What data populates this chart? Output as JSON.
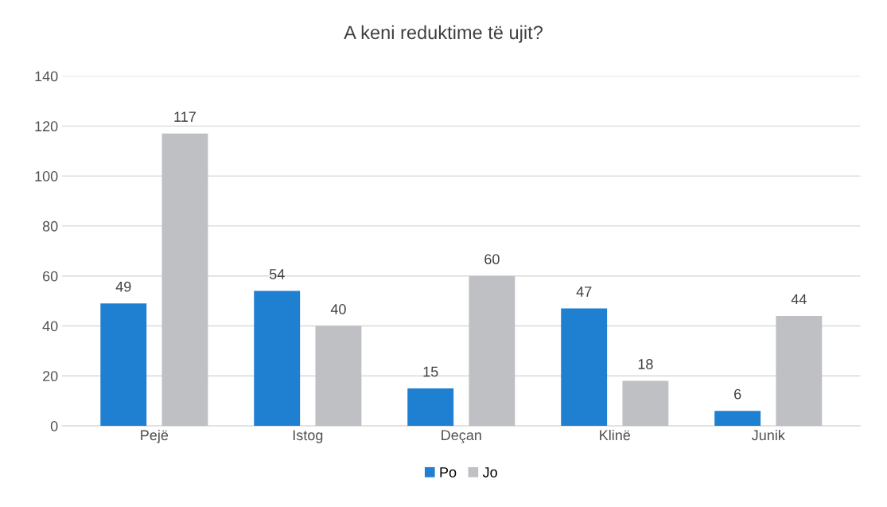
{
  "chart_data": {
    "type": "bar",
    "title": "A keni reduktime të ujit?",
    "categories": [
      "Pejë",
      "Istog",
      "Deçan",
      "Klinë",
      "Junik"
    ],
    "series": [
      {
        "name": "Po",
        "color": "#1f7fd0",
        "values": [
          49,
          54,
          15,
          47,
          6
        ]
      },
      {
        "name": "Jo",
        "color": "#bfc0c4",
        "values": [
          117,
          40,
          60,
          18,
          44
        ]
      }
    ],
    "ylim": [
      0,
      140
    ],
    "yticks": [
      0,
      20,
      40,
      60,
      80,
      100,
      120,
      140
    ],
    "grid": "y",
    "legend": "bottom",
    "data_labels": true
  }
}
